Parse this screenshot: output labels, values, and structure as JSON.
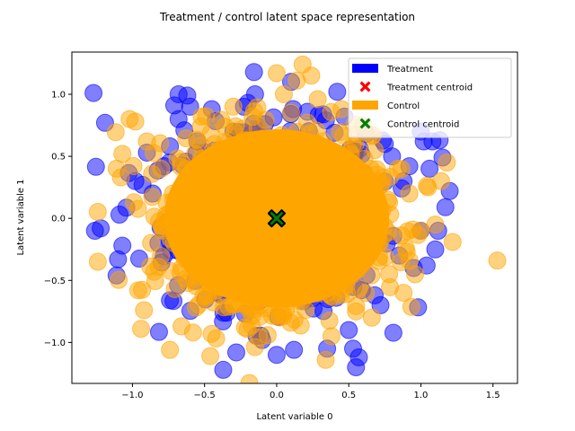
{
  "chart_data": {
    "type": "scatter",
    "title": "Treatment / control latent space representation",
    "xlabel": "Latent variable 0",
    "ylabel": "Latent variable 1",
    "xlim": [
      -1.42,
      1.67
    ],
    "ylim": [
      -1.33,
      1.34
    ],
    "xticks": [
      -1.0,
      -0.5,
      0.0,
      0.5,
      1.0,
      1.5
    ],
    "xtick_labels": [
      "−1.0",
      "−0.5",
      "0.0",
      "0.5",
      "1.0",
      "1.5"
    ],
    "yticks": [
      -1.0,
      -0.5,
      0.0,
      0.5,
      1.0
    ],
    "ytick_labels": [
      "−1.0",
      "−0.5",
      "0.0",
      "0.5",
      "1.0"
    ],
    "grid": false,
    "legend_position": "top-right",
    "series": [
      {
        "name": "Treatment",
        "color": "#0000ff",
        "alpha": 0.5,
        "marker": "circle",
        "points": [
          [
            -1.27,
            1.01
          ],
          [
            -1.19,
            0.77
          ],
          [
            -1.26,
            -0.1
          ],
          [
            -1.22,
            -0.08
          ],
          [
            -1.11,
            -0.46
          ],
          [
            -1.1,
            -0.33
          ],
          [
            -1.09,
            0.03
          ],
          [
            -1.07,
            -0.22
          ],
          [
            -0.98,
            0.3
          ],
          [
            -0.93,
            0.27
          ],
          [
            -0.9,
            0.53
          ],
          [
            -0.86,
            0.2
          ],
          [
            -0.82,
            -0.2
          ],
          [
            -0.78,
            0.42
          ],
          [
            -0.74,
            0.58
          ],
          [
            -0.74,
            -0.66
          ],
          [
            -0.71,
            0.91
          ],
          [
            -0.68,
            1.0
          ],
          [
            -0.68,
            0.8
          ],
          [
            -0.64,
            0.71
          ],
          [
            -0.62,
            0.99
          ],
          [
            -0.6,
            0.9
          ],
          [
            -0.55,
            0.62
          ],
          [
            -0.45,
            0.88
          ],
          [
            -0.4,
            -0.6
          ],
          [
            -0.3,
            0.7
          ],
          [
            -0.28,
            -1.08
          ],
          [
            -0.2,
            0.93
          ],
          [
            -0.15,
            1.0
          ],
          [
            -0.1,
            -0.98
          ],
          [
            0.0,
            -1.1
          ],
          [
            0.1,
            1.1
          ],
          [
            0.12,
            -1.06
          ],
          [
            0.35,
            -1.05
          ],
          [
            0.42,
            1.02
          ],
          [
            0.47,
            0.82
          ],
          [
            0.5,
            -0.9
          ],
          [
            0.53,
            -1.05
          ],
          [
            0.57,
            -1.12
          ],
          [
            0.55,
            -1.2
          ],
          [
            0.62,
            0.68
          ],
          [
            0.68,
            -0.62
          ],
          [
            0.72,
            -0.7
          ],
          [
            0.75,
            0.6
          ],
          [
            0.8,
            0.5
          ],
          [
            0.85,
            -0.3
          ],
          [
            0.88,
            0.3
          ],
          [
            0.92,
            0.42
          ],
          [
            0.95,
            -0.4
          ],
          [
            1.0,
            0.7
          ],
          [
            1.02,
            0.62
          ],
          [
            1.06,
            0.4
          ],
          [
            1.08,
            0.62
          ],
          [
            1.1,
            -0.25
          ],
          [
            1.13,
            0.63
          ],
          [
            1.15,
            0.49
          ],
          [
            1.17,
            0.09
          ],
          [
            1.2,
            0.22
          ],
          [
            1.12,
            -0.1
          ],
          [
            1.04,
            -0.38
          ]
        ]
      },
      {
        "name": "Control",
        "color": "#ffa500",
        "alpha": 0.5,
        "marker": "circle",
        "points": [
          [
            -1.24,
            -0.35
          ],
          [
            -1.11,
            0.4
          ],
          [
            -1.08,
            0.33
          ],
          [
            -1.07,
            0.52
          ],
          [
            -1.02,
            0.8
          ],
          [
            -0.98,
            0.78
          ],
          [
            -0.96,
            -0.58
          ],
          [
            -0.94,
            -0.89
          ],
          [
            -0.92,
            -0.74
          ],
          [
            -0.9,
            0.62
          ],
          [
            -0.85,
            -0.43
          ],
          [
            -0.8,
            0.4
          ],
          [
            -0.74,
            -1.06
          ],
          [
            -0.66,
            -0.87
          ],
          [
            -0.58,
            -0.92
          ],
          [
            -0.52,
            0.82
          ],
          [
            -0.46,
            -1.11
          ],
          [
            -0.43,
            0.6
          ],
          [
            -0.3,
            0.9
          ],
          [
            -0.22,
            -0.88
          ],
          [
            -0.12,
            -0.96
          ],
          [
            0.0,
            1.17
          ],
          [
            0.05,
            1.0
          ],
          [
            0.14,
            1.11
          ],
          [
            0.18,
            1.24
          ],
          [
            0.24,
            1.15
          ],
          [
            0.34,
            -1.14
          ],
          [
            0.38,
            -0.95
          ],
          [
            0.45,
            0.88
          ],
          [
            0.55,
            -0.75
          ],
          [
            0.6,
            0.75
          ],
          [
            0.66,
            -0.8
          ],
          [
            0.7,
            0.3
          ],
          [
            0.78,
            -0.45
          ],
          [
            0.84,
            0.4
          ],
          [
            0.88,
            -0.6
          ],
          [
            0.92,
            0.2
          ],
          [
            0.96,
            -0.45
          ],
          [
            1.0,
            -0.1
          ],
          [
            1.05,
            0.25
          ],
          [
            1.1,
            -0.05
          ],
          [
            1.14,
            0.3
          ],
          [
            1.18,
            0.45
          ],
          [
            1.22,
            -0.19
          ],
          [
            1.53,
            -0.34
          ],
          [
            0.68,
            0.55
          ],
          [
            -0.72,
            0.2
          ],
          [
            -0.6,
            -0.3
          ]
        ]
      }
    ],
    "dense_core": {
      "color": "#ffa500",
      "note_free": true,
      "center": [
        0.0,
        0.0
      ],
      "radius": 0.78
    },
    "centroids": [
      {
        "name": "Treatment centroid",
        "x": 0.0,
        "y": 0.0,
        "color": "#ff0000",
        "marker": "X"
      },
      {
        "name": "Control centroid",
        "x": 0.0,
        "y": 0.0,
        "color": "#008000",
        "marker": "X"
      }
    ],
    "legend": [
      {
        "label": "Treatment",
        "kind": "patch",
        "color": "#0000ff"
      },
      {
        "label": "Treatment centroid",
        "kind": "x",
        "color": "#ff0000"
      },
      {
        "label": "Control",
        "kind": "patch",
        "color": "#ffa500"
      },
      {
        "label": "Control centroid",
        "kind": "x",
        "color": "#008000"
      }
    ]
  }
}
